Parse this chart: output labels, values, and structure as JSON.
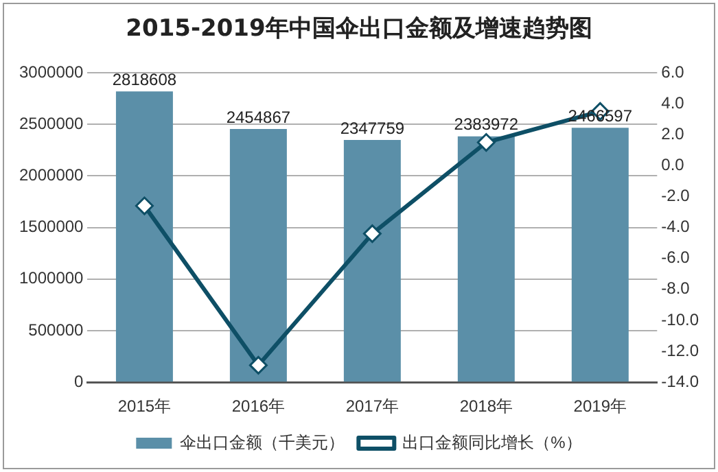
{
  "chart_data": {
    "type": "bar",
    "title": "2015-2019年中国伞出口金额及增速趋势图",
    "categories": [
      "2015年",
      "2016年",
      "2017年",
      "2018年",
      "2019年"
    ],
    "series": [
      {
        "name": "伞出口金额（千美元）",
        "color": "#5b8fa8",
        "values": [
          2818608,
          2454867,
          2347759,
          2383972,
          2466597
        ],
        "value_labels": [
          "2818608",
          "2454867",
          "2347759",
          "2383972",
          "2466597"
        ]
      },
      {
        "name": "出口金额同比增长（%）",
        "type": "line",
        "axis": "y2",
        "color": "#0e4f66",
        "marker": "diamond",
        "values": [
          -2.6,
          -12.9,
          -4.4,
          1.5,
          3.5
        ]
      }
    ],
    "ylim": [
      0,
      3000000
    ],
    "yticks": [
      0,
      500000,
      1000000,
      1500000,
      2000000,
      2500000,
      3000000
    ],
    "y2lim": [
      -14,
      6
    ],
    "y2ticks": [
      {
        "value": -14,
        "label": "-14.0"
      },
      {
        "value": -12,
        "label": "-12.0"
      },
      {
        "value": -10,
        "label": "-10.0"
      },
      {
        "value": -8,
        "label": "-8.0"
      },
      {
        "value": -6,
        "label": "-6.0"
      },
      {
        "value": -4,
        "label": "-4.0"
      },
      {
        "value": -2,
        "label": "-2.0"
      },
      {
        "value": 0,
        "label": "0.0"
      },
      {
        "value": 2,
        "label": "2.0"
      },
      {
        "value": 4,
        "label": "4.0"
      },
      {
        "value": 6,
        "label": "6.0"
      }
    ],
    "grid": "y",
    "legend": "bottom"
  }
}
